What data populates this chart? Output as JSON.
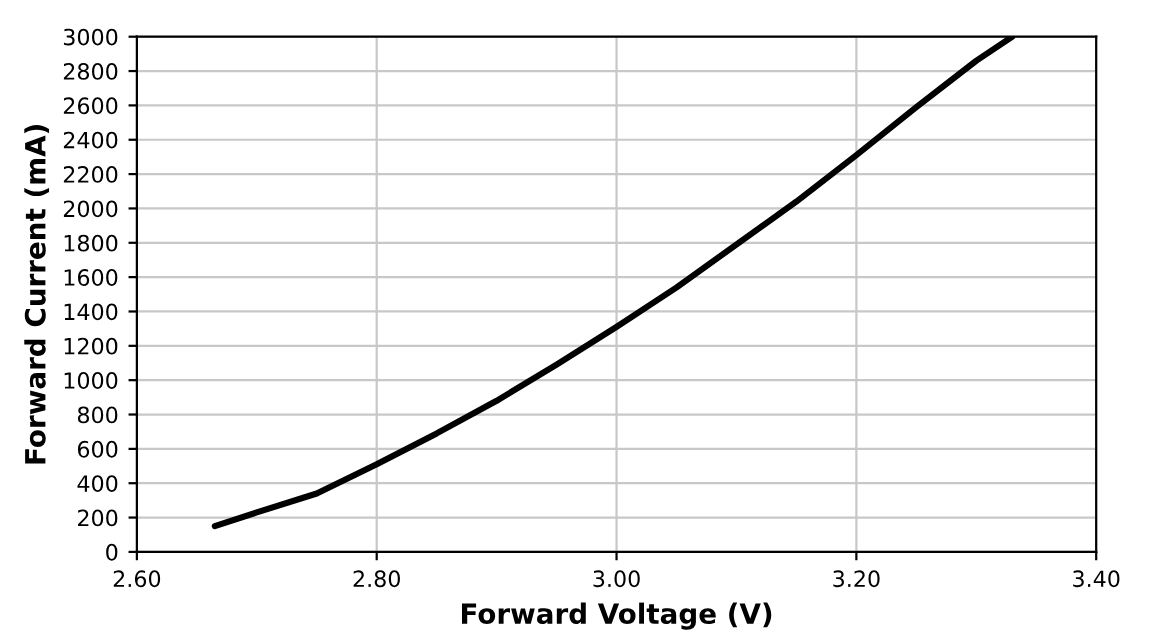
{
  "chart_data": {
    "type": "line",
    "xlabel": "Forward Voltage (V)",
    "ylabel": "Forward Current (mA)",
    "x": [
      2.665,
      2.7,
      2.75,
      2.8,
      2.85,
      2.9,
      2.95,
      3.0,
      3.05,
      3.1,
      3.15,
      3.2,
      3.25,
      3.3,
      3.33
    ],
    "series": [
      {
        "color": "#000000",
        "values": [
          150,
          230,
          340,
          510,
          690,
          880,
          1090,
          1310,
          1540,
          1790,
          2040,
          2310,
          2590,
          2860,
          3000
        ]
      }
    ],
    "xlim": [
      2.6,
      3.4
    ],
    "xticks": [
      {
        "value": 2.6,
        "label": "2.60"
      },
      {
        "value": 2.8,
        "label": "2.80"
      },
      {
        "value": 3.0,
        "label": "3.00"
      },
      {
        "value": 3.2,
        "label": "3.20"
      },
      {
        "value": 3.4,
        "label": "3.40"
      }
    ],
    "ylim": [
      0,
      3000
    ],
    "yticks": [
      0,
      200,
      400,
      600,
      800,
      1000,
      1200,
      1400,
      1600,
      1800,
      2000,
      2200,
      2400,
      2600,
      2800,
      3000
    ],
    "grid": true,
    "marker": "none",
    "line_style": "solid"
  }
}
